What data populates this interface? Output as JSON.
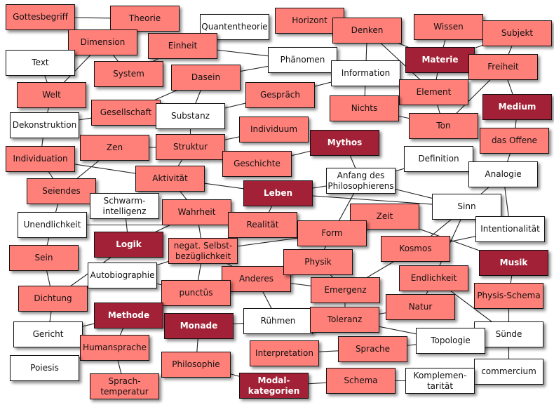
{
  "colors": {
    "light": "#ff7f79",
    "dark": "#a22136",
    "white": "#ffffff",
    "edge": "#222222"
  },
  "nodes": [
    {
      "id": "gottesbegriff",
      "label": "Gottesbegriff",
      "style": "light"
    },
    {
      "id": "theorie",
      "label": "Theorie",
      "style": "light"
    },
    {
      "id": "quantentheorie",
      "label": "Quantentheorie",
      "style": "white"
    },
    {
      "id": "dimension",
      "label": "Dimension",
      "style": "light"
    },
    {
      "id": "einheit",
      "label": "Einheit",
      "style": "light"
    },
    {
      "id": "text",
      "label": "Text",
      "style": "white"
    },
    {
      "id": "system",
      "label": "System",
      "style": "light"
    },
    {
      "id": "dasein",
      "label": "Dasein",
      "style": "light"
    },
    {
      "id": "welt",
      "label": "Welt",
      "style": "light"
    },
    {
      "id": "gesellschaft",
      "label": "Gesellschaft",
      "style": "light"
    },
    {
      "id": "substanz",
      "label": "Substanz",
      "style": "white"
    },
    {
      "id": "dekonstruktion",
      "label": "Dekonstruktion",
      "style": "white"
    },
    {
      "id": "zen",
      "label": "Zen",
      "style": "light"
    },
    {
      "id": "struktur",
      "label": "Struktur",
      "style": "light"
    },
    {
      "id": "individuation",
      "label": "Individuation",
      "style": "light"
    },
    {
      "id": "aktivitaet",
      "label": "Aktivität",
      "style": "light"
    },
    {
      "id": "seiendes",
      "label": "Seiendes",
      "style": "light"
    },
    {
      "id": "schwarm",
      "label": "Schwarm-\nintelligenz",
      "style": "white"
    },
    {
      "id": "geschichte",
      "label": "Geschichte",
      "style": "light"
    },
    {
      "id": "individuum",
      "label": "Individuum",
      "style": "light"
    },
    {
      "id": "gespraech",
      "label": "Gespräch",
      "style": "light"
    },
    {
      "id": "phaenomen",
      "label": "Phänomen",
      "style": "white"
    },
    {
      "id": "horizont",
      "label": "Horizont",
      "style": "light"
    },
    {
      "id": "denken",
      "label": "Denken",
      "style": "light"
    },
    {
      "id": "wissen",
      "label": "Wissen",
      "style": "light"
    },
    {
      "id": "subjekt",
      "label": "Subjekt",
      "style": "light"
    },
    {
      "id": "materie",
      "label": "Materie",
      "style": "dark"
    },
    {
      "id": "information",
      "label": "Information",
      "style": "white"
    },
    {
      "id": "freiheit",
      "label": "Freiheit",
      "style": "light"
    },
    {
      "id": "element",
      "label": "Element",
      "style": "light"
    },
    {
      "id": "nichts",
      "label": "Nichts",
      "style": "light"
    },
    {
      "id": "medium",
      "label": "Medium",
      "style": "dark"
    },
    {
      "id": "ton",
      "label": "Ton",
      "style": "light"
    },
    {
      "id": "offene",
      "label": "das Offene",
      "style": "light"
    },
    {
      "id": "mythos",
      "label": "Mythos",
      "style": "dark"
    },
    {
      "id": "definition",
      "label": "Definition",
      "style": "white"
    },
    {
      "id": "analogie",
      "label": "Analogie",
      "style": "white"
    },
    {
      "id": "anfang",
      "label": "Anfang des\nPhilosophierens",
      "style": "white"
    },
    {
      "id": "leben",
      "label": "Leben",
      "style": "dark"
    },
    {
      "id": "sinn",
      "label": "Sinn",
      "style": "white"
    },
    {
      "id": "unendlichkeit",
      "label": "Unendlichkeit",
      "style": "white"
    },
    {
      "id": "wahrheit",
      "label": "Wahrheit",
      "style": "light"
    },
    {
      "id": "realitaet",
      "label": "Realität",
      "style": "light"
    },
    {
      "id": "logik",
      "label": "Logik",
      "style": "dark"
    },
    {
      "id": "negat",
      "label": "negat. Selbst-\nbezüglichkeit",
      "style": "light"
    },
    {
      "id": "sein",
      "label": "Sein",
      "style": "light"
    },
    {
      "id": "autobiographie",
      "label": "Autobiographie",
      "style": "white"
    },
    {
      "id": "anderes",
      "label": "Anderes",
      "style": "light"
    },
    {
      "id": "punctus",
      "label": "punctūs",
      "style": "light"
    },
    {
      "id": "dichtung",
      "label": "Dichtung",
      "style": "light"
    },
    {
      "id": "methode",
      "label": "Methode",
      "style": "dark"
    },
    {
      "id": "monade",
      "label": "Monade",
      "style": "dark"
    },
    {
      "id": "ruehmen",
      "label": "Rühmen",
      "style": "white"
    },
    {
      "id": "gericht",
      "label": "Gericht",
      "style": "white"
    },
    {
      "id": "humansprache",
      "label": "Humansprache",
      "style": "light"
    },
    {
      "id": "poiesis",
      "label": "Poiesis",
      "style": "white"
    },
    {
      "id": "philosophie",
      "label": "Philosophie",
      "style": "light"
    },
    {
      "id": "sprachtemperatur",
      "label": "Sprach-\ntemperatur",
      "style": "light"
    },
    {
      "id": "modalkategorien",
      "label": "Modal-\nkategorien",
      "style": "dark"
    },
    {
      "id": "interpretation",
      "label": "Interpretation",
      "style": "light"
    },
    {
      "id": "zeit",
      "label": "Zeit",
      "style": "light"
    },
    {
      "id": "form",
      "label": "Form",
      "style": "light"
    },
    {
      "id": "intentionalitaet",
      "label": "Intentionalität",
      "style": "white"
    },
    {
      "id": "kosmos",
      "label": "Kosmos",
      "style": "light"
    },
    {
      "id": "physik",
      "label": "Physik",
      "style": "light"
    },
    {
      "id": "musik",
      "label": "Musik",
      "style": "dark"
    },
    {
      "id": "endlichkeit",
      "label": "Endlichkeit",
      "style": "light"
    },
    {
      "id": "emergenz",
      "label": "Emergenz",
      "style": "light"
    },
    {
      "id": "physisschema",
      "label": "Physis-Schema",
      "style": "light"
    },
    {
      "id": "natur",
      "label": "Natur",
      "style": "light"
    },
    {
      "id": "toleranz",
      "label": "Toleranz",
      "style": "light"
    },
    {
      "id": "suende",
      "label": "Sünde",
      "style": "white"
    },
    {
      "id": "topologie",
      "label": "Topologie",
      "style": "white"
    },
    {
      "id": "sprache",
      "label": "Sprache",
      "style": "light"
    },
    {
      "id": "commercium",
      "label": "commercium",
      "style": "white"
    },
    {
      "id": "schema",
      "label": "Schema",
      "style": "light"
    },
    {
      "id": "komplementaritaet",
      "label": "Komplemen-\ntarität",
      "style": "white"
    }
  ],
  "edges": [
    [
      "gottesbegriff",
      "theorie"
    ],
    [
      "dimension",
      "welt"
    ],
    [
      "dimension",
      "system"
    ],
    [
      "einheit",
      "phaenomen"
    ],
    [
      "dasein",
      "phaenomen"
    ],
    [
      "dasein",
      "gesellschaft"
    ],
    [
      "dasein",
      "substanz"
    ],
    [
      "einheit",
      "system"
    ],
    [
      "text",
      "welt"
    ],
    [
      "welt",
      "dekonstruktion"
    ],
    [
      "dekonstruktion",
      "gesellschaft"
    ],
    [
      "dekonstruktion",
      "individuation"
    ],
    [
      "substanz",
      "gespraech"
    ],
    [
      "substanz",
      "struktur"
    ],
    [
      "struktur",
      "individuum"
    ],
    [
      "struktur",
      "zen"
    ],
    [
      "struktur",
      "aktivitaet"
    ],
    [
      "zen",
      "seiendes"
    ],
    [
      "individuation",
      "aktivitaet"
    ],
    [
      "individuation",
      "seiendes"
    ],
    [
      "aktivitaet",
      "leben"
    ],
    [
      "aktivitaet",
      "wahrheit"
    ],
    [
      "seiendes",
      "unendlichkeit"
    ],
    [
      "unendlichkeit",
      "realitaet"
    ],
    [
      "unendlichkeit",
      "sein"
    ],
    [
      "schwarm",
      "logik"
    ],
    [
      "logik",
      "dichtung"
    ],
    [
      "logik",
      "wahrheit"
    ],
    [
      "sein",
      "dichtung"
    ],
    [
      "wahrheit",
      "negat"
    ],
    [
      "negat",
      "autobiographie"
    ],
    [
      "negat",
      "punctus"
    ],
    [
      "negat",
      "anderes"
    ],
    [
      "negat",
      "form"
    ],
    [
      "dichtung",
      "gericht"
    ],
    [
      "gericht",
      "methode"
    ],
    [
      "methode",
      "humansprache"
    ],
    [
      "humansprache",
      "poiesis"
    ],
    [
      "humansprache",
      "sprachtemperatur"
    ],
    [
      "monade",
      "ruehmen"
    ],
    [
      "monade",
      "philosophie"
    ],
    [
      "philosophie",
      "modalkategorien"
    ],
    [
      "anderes",
      "ruehmen"
    ],
    [
      "autobiographie",
      "punctus"
    ],
    [
      "geschichte",
      "mythos"
    ],
    [
      "mythos",
      "anfang"
    ],
    [
      "anfang",
      "leben"
    ],
    [
      "anfang",
      "definition"
    ],
    [
      "anfang",
      "sinn"
    ],
    [
      "anfang",
      "form"
    ],
    [
      "leben",
      "sinn"
    ],
    [
      "leben",
      "realitaet"
    ],
    [
      "gespraech",
      "information"
    ],
    [
      "denken",
      "information"
    ],
    [
      "denken",
      "element"
    ],
    [
      "denken",
      "materie"
    ],
    [
      "information",
      "nichts"
    ],
    [
      "information",
      "element"
    ],
    [
      "nichts",
      "ton"
    ],
    [
      "element",
      "ton"
    ],
    [
      "wissen",
      "materie"
    ],
    [
      "materie",
      "element"
    ],
    [
      "subjekt",
      "freiheit"
    ],
    [
      "subjekt",
      "materie"
    ],
    [
      "freiheit",
      "medium"
    ],
    [
      "freiheit",
      "ton"
    ],
    [
      "medium",
      "offene"
    ],
    [
      "offene",
      "analogie"
    ],
    [
      "analogie",
      "sinn"
    ],
    [
      "analogie",
      "intentionalitaet"
    ],
    [
      "sinn",
      "kosmos"
    ],
    [
      "sinn",
      "endlichkeit"
    ],
    [
      "intentionalitaet",
      "kosmos"
    ],
    [
      "zeit",
      "musik"
    ],
    [
      "form",
      "physik"
    ],
    [
      "kosmos",
      "emergenz"
    ],
    [
      "physik",
      "emergenz"
    ],
    [
      "anderes",
      "emergenz"
    ],
    [
      "emergenz",
      "toleranz"
    ],
    [
      "toleranz",
      "natur"
    ],
    [
      "toleranz",
      "topologie"
    ],
    [
      "endlichkeit",
      "natur"
    ],
    [
      "endlichkeit",
      "suende"
    ],
    [
      "musik",
      "physisschema"
    ],
    [
      "physisschema",
      "suende"
    ],
    [
      "suende",
      "commercium"
    ],
    [
      "sprache",
      "interpretation"
    ],
    [
      "sprache",
      "topologie"
    ],
    [
      "schema",
      "modalkategorien"
    ],
    [
      "schema",
      "komplementaritaet"
    ]
  ]
}
